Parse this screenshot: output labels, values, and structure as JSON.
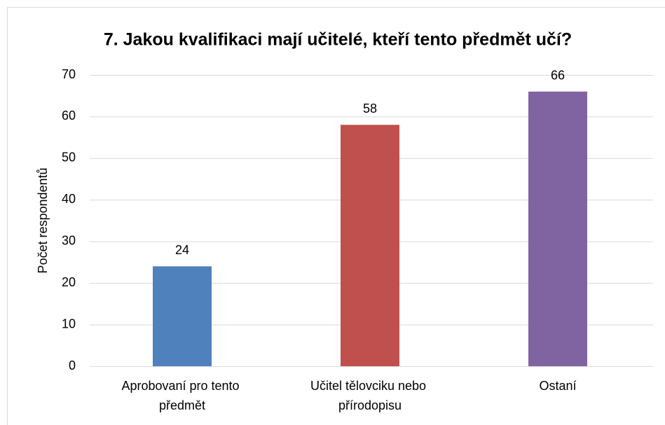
{
  "chart_data": {
    "type": "bar",
    "title": "7. Jakou kvalifikaci mají učitelé, kteří tento předmět učí?",
    "ylabel": "Počet respondentů",
    "categories": [
      "Aprobovaní pro tento předmět",
      "Učitel tělovciku nebo přírodopisu",
      "Ostaní"
    ],
    "values": [
      24,
      58,
      66
    ],
    "colors": [
      "#4f81bd",
      "#c0504d",
      "#8064a2"
    ],
    "ylim": [
      0,
      70
    ],
    "yticks": [
      0,
      10,
      20,
      30,
      40,
      50,
      60,
      70
    ],
    "grid": true
  }
}
